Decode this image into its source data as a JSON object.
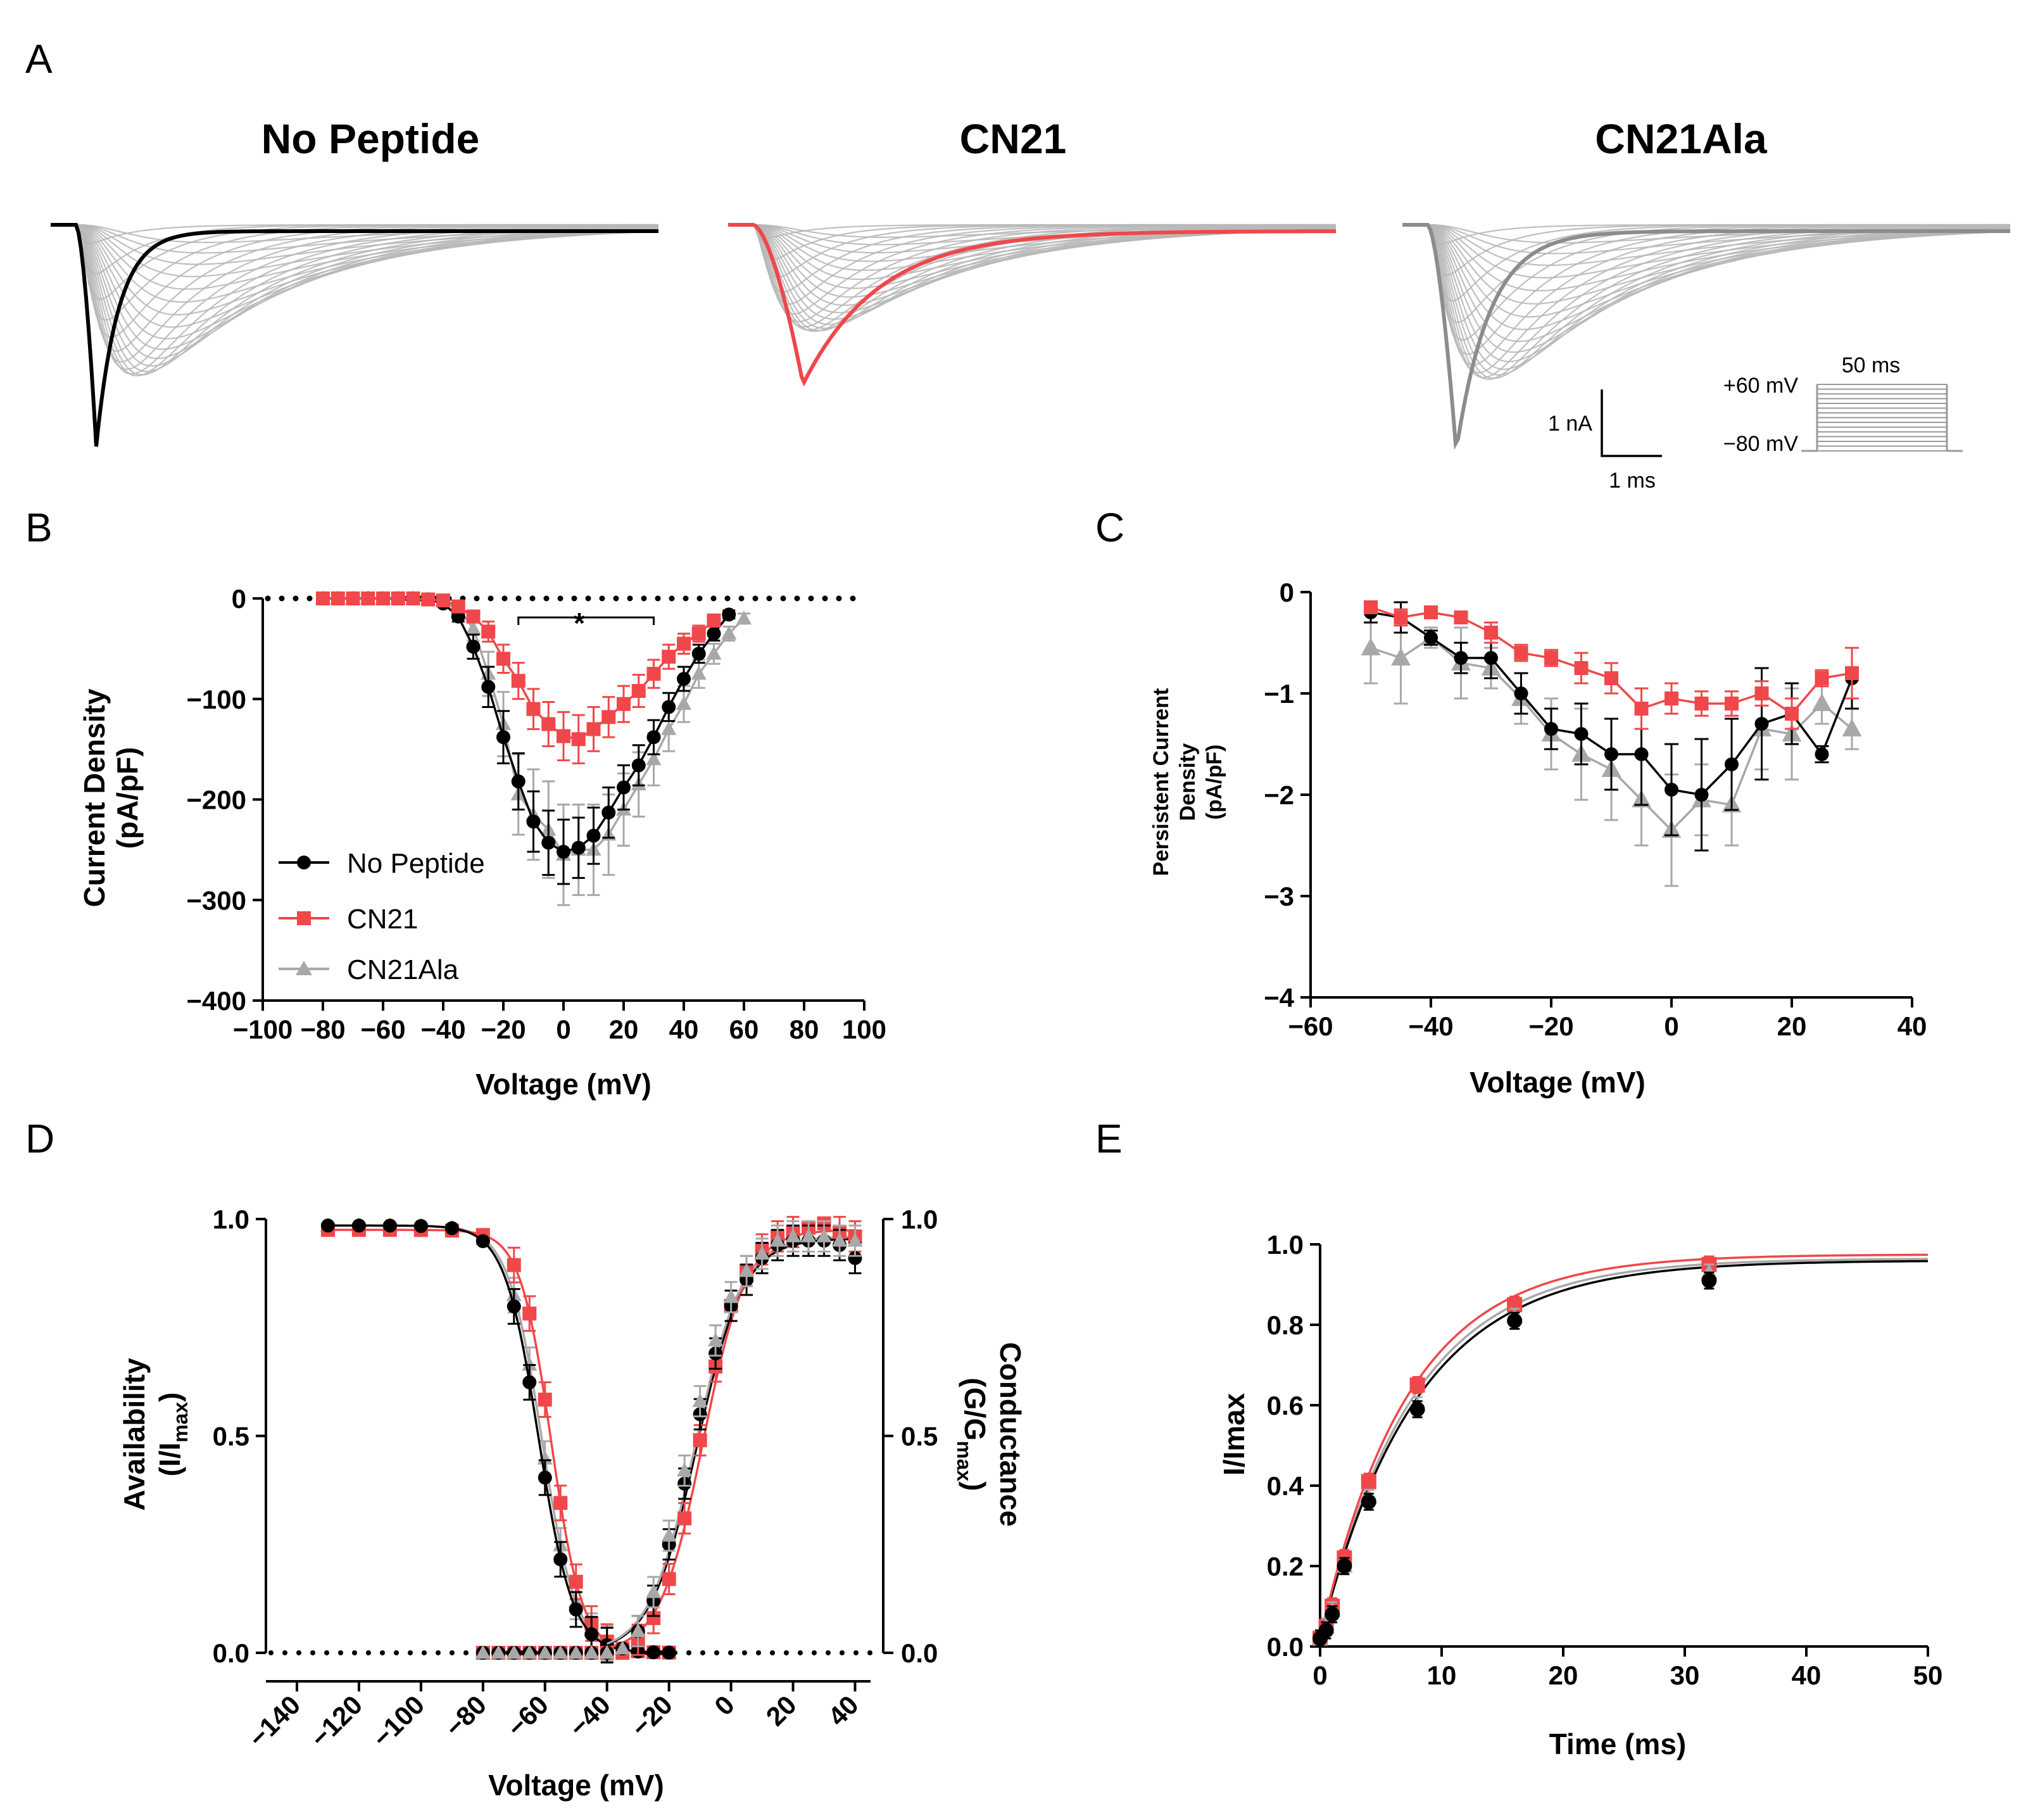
{
  "colors": {
    "no_peptide": "#000000",
    "cn21": "#f0474a",
    "cn21ala": "#a8a8a8",
    "trace_family": "#b8b8b8"
  },
  "panelA": {
    "label": "A",
    "titles": [
      "No Peptide",
      "CN21",
      "CN21Ala"
    ],
    "scale_current": "1 nA",
    "scale_time": "1 ms",
    "protocol_high": "+60 mV",
    "protocol_low": "−80 mV",
    "protocol_duration": "50 ms"
  },
  "chart_data": [
    {
      "id": "B",
      "panel_label": "B",
      "type": "scatter",
      "xlabel": "Voltage (mV)",
      "ylabel_lines": [
        "Current  Density",
        "(pA/pF)"
      ],
      "xlim": [
        -100,
        100
      ],
      "ylim": [
        -400,
        0
      ],
      "xticks": [
        -100,
        -80,
        -60,
        -40,
        -20,
        0,
        20,
        40,
        60,
        80,
        100
      ],
      "xtick_labels": [
        "−100",
        "−80",
        "−60",
        "−40",
        "−20",
        "0",
        "20",
        "40",
        "60",
        "80",
        "100"
      ],
      "yticks": [
        0,
        -100,
        -200,
        -300,
        -400
      ],
      "ytick_labels": [
        "0",
        "−100",
        "−200",
        "−300",
        "−400"
      ],
      "significance": {
        "marker": "*",
        "x_from": -15,
        "x_to": 30,
        "y": 30
      },
      "legend": [
        "No Peptide",
        "CN21",
        "CN21Ala"
      ],
      "x": [
        -80,
        -75,
        -70,
        -65,
        -60,
        -55,
        -50,
        -45,
        -40,
        -35,
        -30,
        -25,
        -20,
        -15,
        -10,
        -5,
        0,
        5,
        10,
        15,
        20,
        25,
        30,
        35,
        40,
        45,
        50,
        55,
        60
      ],
      "series": [
        {
          "name": "CN21Ala",
          "color": "#a8a8a8",
          "marker": "triangle",
          "values": [
            0,
            0,
            0,
            0,
            0,
            0,
            0,
            -1,
            -3,
            -10,
            -30,
            -75,
            -125,
            -195,
            -215,
            -230,
            -255,
            -250,
            -250,
            -235,
            -210,
            -185,
            -160,
            -130,
            -105,
            -75,
            -55,
            -35,
            -20
          ],
          "errors": [
            0,
            0,
            0,
            0,
            0,
            0,
            0,
            1,
            2,
            5,
            12,
            22,
            32,
            40,
            45,
            48,
            50,
            45,
            45,
            40,
            36,
            32,
            26,
            22,
            18,
            14,
            10,
            7,
            5
          ]
        },
        {
          "name": "No Peptide",
          "color": "#000000",
          "marker": "circle",
          "values": [
            0,
            0,
            0,
            0,
            0,
            0,
            0,
            -1,
            -5,
            -18,
            -48,
            -88,
            -138,
            -182,
            -222,
            -243,
            -252,
            -248,
            -236,
            -213,
            -188,
            -166,
            -138,
            -108,
            -80,
            -55,
            -35,
            -16,
            null
          ],
          "errors": [
            0,
            0,
            0,
            0,
            0,
            0,
            0,
            1,
            2,
            5,
            12,
            20,
            26,
            28,
            30,
            32,
            32,
            30,
            28,
            25,
            22,
            20,
            17,
            14,
            12,
            9,
            7,
            4,
            0
          ]
        },
        {
          "name": "CN21",
          "color": "#f0474a",
          "marker": "square",
          "values": [
            0,
            0,
            0,
            0,
            0,
            0,
            0,
            -1,
            -2,
            -8,
            -18,
            -33,
            -60,
            -82,
            -110,
            -125,
            -137,
            -140,
            -130,
            -118,
            -105,
            -92,
            -75,
            -58,
            -45,
            -35,
            -22,
            null,
            null
          ],
          "errors": [
            0,
            0,
            0,
            0,
            0,
            0,
            0,
            1,
            1,
            3,
            6,
            10,
            14,
            18,
            20,
            22,
            24,
            24,
            22,
            20,
            18,
            16,
            14,
            12,
            10,
            8,
            6,
            0,
            0
          ]
        }
      ]
    },
    {
      "id": "C",
      "panel_label": "C",
      "type": "line",
      "xlabel": "Voltage (mV)",
      "ylabel_lines": [
        "Persistent Current",
        "Density",
        "(pA/pF)"
      ],
      "xlim": [
        -60,
        40
      ],
      "ylim": [
        -4,
        0
      ],
      "xticks": [
        -60,
        -40,
        -20,
        0,
        20,
        40
      ],
      "xtick_labels": [
        "−60",
        "−40",
        "−20",
        "0",
        "20",
        "40"
      ],
      "yticks": [
        0,
        -1,
        -2,
        -3,
        -4
      ],
      "ytick_labels": [
        "0",
        "−1",
        "−2",
        "−3",
        "−4"
      ],
      "x": [
        -50,
        -45,
        -40,
        -35,
        -30,
        -25,
        -20,
        -15,
        -10,
        -5,
        0,
        5,
        10,
        15,
        20,
        25,
        30
      ],
      "series": [
        {
          "name": "CN21Ala",
          "color": "#a8a8a8",
          "marker": "triangle",
          "values": [
            -0.55,
            -0.65,
            -0.45,
            -0.7,
            -0.75,
            -1.05,
            -1.4,
            -1.6,
            -1.75,
            -2.05,
            -2.35,
            -2.05,
            -2.1,
            -1.35,
            -1.4,
            -1.1,
            -1.35
          ],
          "errors": [
            0.35,
            0.45,
            0.1,
            0.35,
            0.2,
            0.25,
            0.35,
            0.45,
            0.5,
            0.45,
            0.55,
            0.35,
            0.4,
            0.4,
            0.45,
            0.2,
            0.2
          ]
        },
        {
          "name": "No Peptide",
          "color": "#000000",
          "marker": "circle",
          "values": [
            -0.2,
            -0.25,
            -0.45,
            -0.65,
            -0.65,
            -1.0,
            -1.35,
            -1.4,
            -1.6,
            -1.6,
            -1.95,
            -2.0,
            -1.7,
            -1.3,
            -1.2,
            -1.6,
            -0.85
          ],
          "errors": [
            0.1,
            0.15,
            0.07,
            0.15,
            0.2,
            0.2,
            0.2,
            0.3,
            0.35,
            0.5,
            0.45,
            0.55,
            0.45,
            0.55,
            0.3,
            0.08,
            0.3
          ]
        },
        {
          "name": "CN21",
          "color": "#f0474a",
          "marker": "square",
          "values": [
            -0.15,
            -0.25,
            -0.2,
            -0.25,
            -0.4,
            -0.6,
            -0.65,
            -0.75,
            -0.85,
            -1.15,
            -1.05,
            -1.1,
            -1.1,
            -1.0,
            -1.2,
            -0.85,
            -0.8
          ],
          "errors": [
            0.05,
            0.08,
            0.05,
            0.05,
            0.1,
            0.08,
            0.08,
            0.15,
            0.15,
            0.2,
            0.15,
            0.12,
            0.12,
            0.12,
            0.15,
            0.08,
            0.25
          ]
        }
      ]
    },
    {
      "id": "D",
      "panel_label": "D",
      "type": "scatter",
      "xlabel": "Voltage (mV)",
      "ylabel_left": [
        "Availability",
        "(I/I",
        "max",
        ")"
      ],
      "ylabel_right": [
        "Conductance",
        "(G/G",
        "max",
        ")"
      ],
      "xlim": [
        -150,
        45
      ],
      "ylim": [
        0,
        1
      ],
      "xticks": [
        -140,
        -120,
        -100,
        -80,
        -60,
        -40,
        -20,
        0,
        20,
        40
      ],
      "xtick_labels": [
        "−140",
        "−120",
        "−100",
        "−80",
        "−60",
        "−40",
        "−20",
        "0",
        "20",
        "40"
      ],
      "yticks": [
        0,
        0.5,
        1
      ],
      "ytick_labels": [
        "0.0",
        "0.5",
        "1.0"
      ],
      "inactivation": {
        "x": [
          -130,
          -120,
          -110,
          -100,
          -90,
          -80,
          -70,
          -65,
          -60,
          -55,
          -50,
          -45,
          -40,
          -35,
          -30,
          -25,
          -20
        ],
        "fits": [
          {
            "name": "No Peptide",
            "v_half": -62,
            "k": 5.5,
            "top": 0.985
          },
          {
            "name": "CN21",
            "v_half": -58,
            "k": 5.0,
            "top": 0.975
          },
          {
            "name": "CN21Ala",
            "v_half": -61,
            "k": 5.5,
            "top": 0.985
          }
        ]
      },
      "activation": {
        "x": [
          -80,
          -75,
          -70,
          -65,
          -60,
          -55,
          -50,
          -45,
          -40,
          -35,
          -30,
          -25,
          -20,
          -15,
          -10,
          -5,
          0,
          5,
          10,
          15,
          20,
          25,
          30,
          35,
          40
        ],
        "series": [
          {
            "name": "CN21",
            "color": "#f0474a",
            "marker": "square",
            "values": [
              0,
              0,
              0,
              0,
              0,
              0,
              0,
              0,
              0,
              0,
              0.03,
              0.08,
              0.17,
              0.31,
              0.49,
              0.66,
              0.8,
              0.88,
              0.93,
              0.96,
              0.97,
              0.98,
              0.99,
              0.97,
              0.96
            ]
          },
          {
            "name": "No Peptide",
            "color": "#000000",
            "marker": "circle",
            "values": [
              0,
              0,
              0,
              0,
              0,
              0,
              0,
              0,
              0,
              0.01,
              0.05,
              0.12,
              0.25,
              0.39,
              0.55,
              0.69,
              0.8,
              0.86,
              0.91,
              0.94,
              0.95,
              0.95,
              0.95,
              0.94,
              0.91
            ]
          },
          {
            "name": "CN21Ala",
            "color": "#a8a8a8",
            "marker": "triangle",
            "values": [
              0,
              0,
              0,
              0,
              0,
              0,
              0,
              0,
              0,
              0.01,
              0.05,
              0.14,
              0.27,
              0.42,
              0.58,
              0.72,
              0.82,
              0.88,
              0.92,
              0.95,
              0.96,
              0.96,
              0.96,
              0.95,
              0.95
            ]
          }
        ],
        "fits": [
          {
            "name": "No Peptide",
            "v_half": -11,
            "k": 7.5,
            "top": 0.955
          },
          {
            "name": "CN21",
            "v_half": -9,
            "k": 7.0,
            "top": 0.975
          },
          {
            "name": "CN21Ala",
            "v_half": -11.5,
            "k": 7.5,
            "top": 0.96
          }
        ]
      }
    },
    {
      "id": "E",
      "panel_label": "E",
      "type": "scatter",
      "xlabel": "Time (ms)",
      "ylabel": "I/Imax",
      "xlim": [
        0,
        50
      ],
      "ylim": [
        0,
        1
      ],
      "xticks": [
        0,
        10,
        20,
        30,
        40,
        50
      ],
      "xtick_labels": [
        "0",
        "10",
        "20",
        "30",
        "40",
        "50"
      ],
      "yticks": [
        0,
        0.2,
        0.4,
        0.6,
        0.8,
        1.0
      ],
      "ytick_labels": [
        "0.0",
        "0.2",
        "0.4",
        "0.6",
        "0.8",
        "1.0"
      ],
      "x": [
        0,
        0.5,
        1,
        2,
        4,
        8,
        16,
        32
      ],
      "series": [
        {
          "name": "CN21",
          "color": "#f0474a",
          "marker": "square",
          "values": [
            0.02,
            0.05,
            0.1,
            0.22,
            0.41,
            0.65,
            0.85,
            0.95
          ]
        },
        {
          "name": "CN21Ala",
          "color": "#a8a8a8",
          "marker": "triangle",
          "values": [
            0.02,
            0.05,
            0.09,
            0.2,
            0.37,
            0.6,
            0.82,
            0.93
          ]
        },
        {
          "name": "No Peptide",
          "color": "#000000",
          "marker": "circle",
          "values": [
            0.02,
            0.04,
            0.08,
            0.2,
            0.36,
            0.59,
            0.81,
            0.91
          ]
        }
      ],
      "fits": [
        {
          "name": "CN21Ala",
          "tau": 7.6,
          "plateau": 0.965
        },
        {
          "name": "No Peptide",
          "tau": 7.9,
          "plateau": 0.96
        },
        {
          "name": "CN21",
          "tau": 7.2,
          "plateau": 0.975
        }
      ]
    }
  ]
}
